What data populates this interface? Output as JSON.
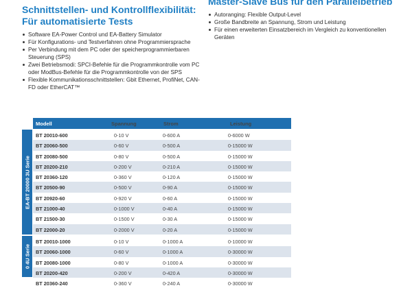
{
  "left_section": {
    "title_line1": "Schnittstellen- und Kontrollflexibilität:",
    "title_line2": "Für automatisierte Tests",
    "bullets": [
      "Software EA-Power Control und EA-Battery Simulator",
      "Für Konfigurations- und Testverfahren ohne Programmiersprache",
      "Per Verbindung mit dem PC oder der speicherprogrammierbaren Steuerung (SPS)",
      "Zwei Betriebsmodi: SPCI-Befehle für die Programmkontrolle vom PC oder ModBus-Befehle für die Programmkontrolle von der SPS",
      "Flexible Kommunikationsschnittstellen: Gbit Ethernet, ProfiNet, CAN-FD oder EtherCAT™"
    ]
  },
  "right_section": {
    "title": "Master-Slave Bus für den Parallelbetrieb",
    "bullets": [
      "Autoranging: Flexible Output-Level",
      "Große Bandbreite an Spannung, Strom und Leistung",
      "Für einen erweiterten Einsatzbereich im Vergleich zu konventionellen Geräten"
    ]
  },
  "table": {
    "headers": {
      "model": "Modell",
      "voltage": "Spannung",
      "current": "Strom",
      "power": "Leistung"
    },
    "groups": [
      {
        "label": "EA-BT 20000 3U Serie",
        "rows": [
          [
            "BT 20010-600",
            "0-10 V",
            "0-600 A",
            "0-6000 W"
          ],
          [
            "BT 20060-500",
            "0-60 V",
            "0-500 A",
            "0-15000 W"
          ],
          [
            "BT 20080-500",
            "0-80 V",
            "0-500 A",
            "0-15000 W"
          ],
          [
            "BT 20200-210",
            "0-200 V",
            "0-210 A",
            "0-15000 W"
          ],
          [
            "BT 20360-120",
            "0-360 V",
            "0-120 A",
            "0-15000 W"
          ],
          [
            "BT 20500-90",
            "0-500 V",
            "0-90 A",
            "0-15000 W"
          ],
          [
            "BT 20920-60",
            "0-920 V",
            "0-60 A",
            "0-15000 W"
          ],
          [
            "BT 21000-40",
            "0-1000 V",
            "0-40 A",
            "0-15000 W"
          ],
          [
            "BT 21500-30",
            "0-1500 V",
            "0-30 A",
            "0-15000 W"
          ],
          [
            "BT 22000-20",
            "0-2000 V",
            "0-20 A",
            "0-15000 W"
          ]
        ]
      },
      {
        "label": "0 4U Serie",
        "rows": [
          [
            "BT 20010-1000",
            "0-10 V",
            "0-1000 A",
            "0-10000 W"
          ],
          [
            "BT 20060-1000",
            "0-60 V",
            "0-1000 A",
            "0-30000 W"
          ],
          [
            "BT 20080-1000",
            "0-80 V",
            "0-1000 A",
            "0-30000 W"
          ],
          [
            "BT 20200-420",
            "0-200 V",
            "0-420 A",
            "0-30000 W"
          ],
          [
            "BT 20360-240",
            "0-360 V",
            "0-240 A",
            "0-30000 W"
          ]
        ]
      }
    ]
  }
}
